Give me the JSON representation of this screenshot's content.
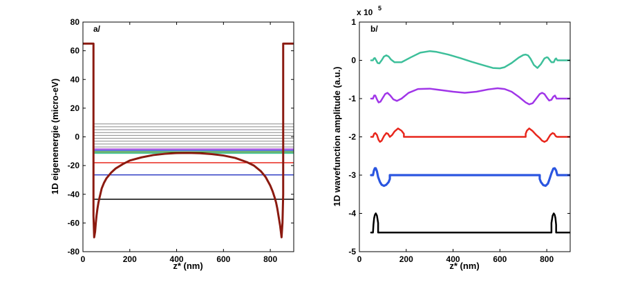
{
  "chart_data": [
    {
      "type": "line",
      "panel_label": "a/",
      "xlabel": "z* (nm)",
      "ylabel": "1D eigenenergie (micro-eV)",
      "xlim": [
        0,
        900
      ],
      "ylim": [
        -80,
        80
      ],
      "xticks": [
        0,
        200,
        400,
        600,
        800
      ],
      "yticks": [
        -80,
        -60,
        -40,
        -20,
        0,
        20,
        40,
        60,
        80
      ],
      "potential": {
        "color": "#8b1a10",
        "x": [
          0,
          45,
          45,
          48,
          52,
          55,
          58,
          62,
          66,
          70,
          75,
          80,
          90,
          100,
          120,
          140,
          170,
          200,
          250,
          300,
          350,
          400,
          450,
          500,
          550,
          600,
          650,
          700,
          730,
          760,
          780,
          800,
          810,
          820,
          825,
          830,
          835,
          838,
          842,
          845,
          848,
          852,
          855,
          855,
          900
        ],
        "y": [
          65,
          65,
          -55,
          -70,
          -66,
          -60,
          -55,
          -50,
          -46,
          -43,
          -39.5,
          -36,
          -32,
          -29,
          -25,
          -22,
          -19,
          -16.5,
          -14.3,
          -12.7,
          -11.8,
          -11.3,
          -11.2,
          -11.4,
          -12.0,
          -13.0,
          -14.7,
          -17.6,
          -20,
          -24,
          -28,
          -34,
          -38,
          -43,
          -46,
          -50,
          -55,
          -58,
          -62,
          -66,
          -70,
          -60,
          -40,
          65,
          65
        ]
      },
      "levels": [
        {
          "y": -43.5,
          "color": "#000000"
        },
        {
          "y": -26.5,
          "color": "#2e3cc4"
        },
        {
          "y": -18,
          "color": "#e8261c"
        },
        {
          "y": -11.5,
          "color": "#3dbf8e"
        },
        {
          "y": -10.5,
          "color": "#1b8a1b"
        },
        {
          "y": -9.5,
          "color": "#3355cc"
        },
        {
          "y": -8.5,
          "color": "#a030e0"
        },
        {
          "y": -7,
          "color": "#8a8a8a"
        },
        {
          "y": -5,
          "color": "#8a8a8a"
        },
        {
          "y": -3,
          "color": "#8a8a8a"
        },
        {
          "y": -1,
          "color": "#8a8a8a"
        },
        {
          "y": 1,
          "color": "#8a8a8a"
        },
        {
          "y": 3,
          "color": "#8a8a8a"
        },
        {
          "y": 5,
          "color": "#8a8a8a"
        },
        {
          "y": 7,
          "color": "#8a8a8a"
        },
        {
          "y": 9,
          "color": "#8a8a8a"
        }
      ]
    },
    {
      "type": "line",
      "panel_label": "b/",
      "xlabel": "z* (nm)",
      "ylabel": "1D wavefunction amplitude (a.u.)",
      "y_multiplier": "x 10",
      "y_multiplier_exp": "5",
      "xlim": [
        0,
        900
      ],
      "ylim": [
        -5,
        1
      ],
      "xticks": [
        0,
        200,
        400,
        600,
        800
      ],
      "yticks": [
        -5,
        -4,
        -3,
        -2,
        -1,
        0,
        1
      ],
      "series": [
        {
          "color": "#3dbf9a",
          "stroke_width": 2.5,
          "x": [
            50,
            58,
            62,
            66,
            70,
            78,
            85,
            95,
            105,
            115,
            125,
            135,
            150,
            180,
            220,
            260,
            300,
            330,
            380,
            430,
            480,
            530,
            570,
            600,
            620,
            650,
            680,
            700,
            710,
            720,
            730,
            745,
            760,
            775,
            790,
            800,
            805,
            810,
            820,
            830,
            836,
            840,
            845,
            850
          ],
          "y": [
            0,
            0,
            0.05,
            0.06,
            0.02,
            -0.07,
            -0.08,
            0,
            0.1,
            0.13,
            0.1,
            0.02,
            -0.05,
            -0.05,
            0.08,
            0.2,
            0.24,
            0.22,
            0.15,
            0.06,
            -0.04,
            -0.13,
            -0.2,
            -0.21,
            -0.18,
            -0.07,
            0.07,
            0.14,
            0.15,
            0.13,
            0.05,
            -0.12,
            -0.2,
            -0.1,
            0.05,
            0.08,
            0.07,
            0.03,
            -0.05,
            -0.05,
            0.03,
            0.05,
            0,
            0
          ]
        },
        {
          "color": "#a035e8",
          "stroke_width": 2.5,
          "x": [
            50,
            58,
            63,
            68,
            75,
            82,
            90,
            100,
            110,
            120,
            132,
            145,
            160,
            180,
            210,
            250,
            300,
            350,
            400,
            450,
            500,
            550,
            590,
            620,
            650,
            680,
            710,
            725,
            740,
            755,
            770,
            780,
            790,
            800,
            810,
            820,
            828,
            835,
            842,
            850
          ],
          "y": [
            -1,
            -1,
            -0.92,
            -0.92,
            -1.02,
            -1.1,
            -1.08,
            -0.98,
            -0.88,
            -0.85,
            -0.92,
            -1.02,
            -1.06,
            -1.0,
            -0.85,
            -0.75,
            -0.74,
            -0.78,
            -0.82,
            -0.85,
            -0.82,
            -0.76,
            -0.73,
            -0.75,
            -0.82,
            -0.95,
            -1.1,
            -1.15,
            -1.12,
            -1.0,
            -0.88,
            -0.85,
            -0.88,
            -0.97,
            -1.05,
            -1.03,
            -0.95,
            -0.92,
            -1.0,
            -1
          ]
        },
        {
          "color": "#e8261c",
          "stroke_width": 2.5,
          "x": [
            50,
            58,
            63,
            68,
            75,
            82,
            88,
            95,
            105,
            115,
            122,
            130,
            140,
            150,
            165,
            180,
            190,
            190,
            195,
            710,
            710,
            715,
            725,
            740,
            755,
            770,
            780,
            790,
            800,
            808,
            815,
            825,
            832,
            838,
            844,
            850
          ],
          "y": [
            -2,
            -2,
            -1.92,
            -1.9,
            -1.95,
            -2.08,
            -2.13,
            -2.1,
            -1.98,
            -1.9,
            -1.92,
            -2.0,
            -1.95,
            -1.86,
            -1.78,
            -1.84,
            -1.92,
            -2.0,
            -2.0,
            -2.0,
            -1.92,
            -1.84,
            -1.78,
            -1.85,
            -1.95,
            -2.03,
            -2.1,
            -2.13,
            -2.1,
            -2.02,
            -1.95,
            -1.9,
            -1.92,
            -1.98,
            -2.0,
            -2
          ]
        },
        {
          "color": "#2a55e0",
          "stroke_width": 3.2,
          "x": [
            50,
            58,
            62,
            66,
            70,
            75,
            80,
            88,
            95,
            105,
            115,
            125,
            130,
            130,
            770,
            770,
            775,
            785,
            795,
            805,
            812,
            820,
            828,
            834,
            840,
            845,
            850
          ],
          "y": [
            -3,
            -3,
            -2.88,
            -2.82,
            -2.82,
            -2.9,
            -3.05,
            -3.18,
            -3.25,
            -3.28,
            -3.25,
            -3.18,
            -3.1,
            -3.0,
            -3.0,
            -3.1,
            -3.18,
            -3.26,
            -3.28,
            -3.22,
            -3.1,
            -2.95,
            -2.83,
            -2.82,
            -2.88,
            -3.0,
            -3
          ]
        },
        {
          "color": "#000000",
          "stroke_width": 2.5,
          "x": [
            50,
            58,
            60,
            63,
            66,
            70,
            75,
            80,
            80,
            820,
            820,
            825,
            830,
            834,
            837,
            840,
            840,
            850
          ],
          "y": [
            -4.5,
            -4.5,
            -4.3,
            -4.12,
            -4.04,
            -4.0,
            -4.06,
            -4.25,
            -4.5,
            -4.5,
            -4.25,
            -4.06,
            -4.0,
            -4.04,
            -4.12,
            -4.3,
            -4.5,
            -4.5
          ]
        }
      ]
    }
  ]
}
